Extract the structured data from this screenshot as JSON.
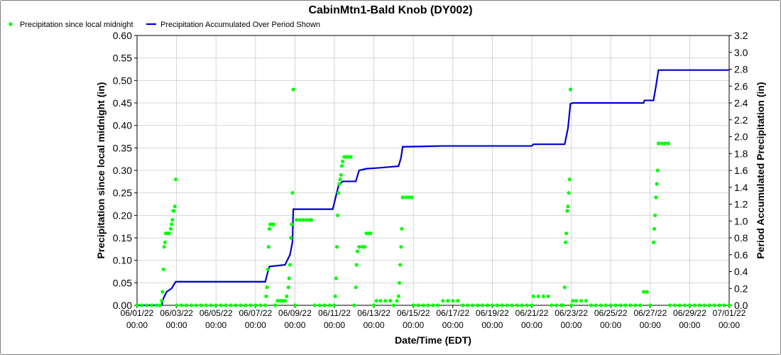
{
  "chart_data": {
    "type": "line",
    "title": "CabinMtn1-Bald Knob (DY002)",
    "xlabel": "Date/Time (EDT)",
    "ylabel_left": "Precipitation since local midnight (in)",
    "ylabel_right": "Period Accumulated Precipitation (in)",
    "xlim": [
      "06/01/22 00:00",
      "07/01/22 00:00"
    ],
    "ylim_left": [
      0,
      0.6
    ],
    "ylim_right": [
      0,
      3.2
    ],
    "grid": true,
    "legend_position": "top-left",
    "x_ticks": [
      {
        "date": "06/01/22",
        "time": "00:00"
      },
      {
        "date": "06/03/22",
        "time": "00:00"
      },
      {
        "date": "06/05/22",
        "time": "00:00"
      },
      {
        "date": "06/07/22",
        "time": "00:00"
      },
      {
        "date": "06/09/22",
        "time": "00:00"
      },
      {
        "date": "06/11/22",
        "time": "00:00"
      },
      {
        "date": "06/13/22",
        "time": "00:00"
      },
      {
        "date": "06/15/22",
        "time": "00:00"
      },
      {
        "date": "06/17/22",
        "time": "00:00"
      },
      {
        "date": "06/19/22",
        "time": "00:00"
      },
      {
        "date": "06/21/22",
        "time": "00:00"
      },
      {
        "date": "06/23/22",
        "time": "00:00"
      },
      {
        "date": "06/25/22",
        "time": "00:00"
      },
      {
        "date": "06/27/22",
        "time": "00:00"
      },
      {
        "date": "06/29/22",
        "time": "00:00"
      },
      {
        "date": "07/01/22",
        "time": "00:00"
      }
    ],
    "y_ticks_left": [
      "0.00",
      "0.05",
      "0.10",
      "0.15",
      "0.20",
      "0.25",
      "0.30",
      "0.35",
      "0.40",
      "0.45",
      "0.50",
      "0.55",
      "0.60"
    ],
    "y_ticks_right": [
      "0.0",
      "0.2",
      "0.4",
      "0.6",
      "0.8",
      "1.0",
      "1.2",
      "1.4",
      "1.6",
      "1.8",
      "2.0",
      "2.2",
      "2.4",
      "2.6",
      "2.8",
      "3.0",
      "3.2"
    ],
    "series": [
      {
        "name": "Precipitation since local midnight",
        "color": "#00ff00",
        "axis": "left",
        "style": "points",
        "points": [
          [
            "06/01/22 00:00",
            0
          ],
          [
            "06/01/22 06:00",
            0
          ],
          [
            "06/01/22 12:00",
            0
          ],
          [
            "06/01/22 18:00",
            0
          ],
          [
            "06/02/22 00:00",
            0
          ],
          [
            "06/02/22 04:00",
            0
          ],
          [
            "06/02/22 06:00",
            0.01
          ],
          [
            "06/02/22 07:00",
            0.03
          ],
          [
            "06/02/22 08:00",
            0.08
          ],
          [
            "06/02/22 09:00",
            0.13
          ],
          [
            "06/02/22 10:00",
            0.14
          ],
          [
            "06/02/22 11:00",
            0.16
          ],
          [
            "06/02/22 13:00",
            0.16
          ],
          [
            "06/02/22 15:00",
            0.16
          ],
          [
            "06/02/22 17:00",
            0.17
          ],
          [
            "06/02/22 18:00",
            0.18
          ],
          [
            "06/02/22 19:00",
            0.19
          ],
          [
            "06/02/22 20:00",
            0.21
          ],
          [
            "06/02/22 21:00",
            0.21
          ],
          [
            "06/02/22 22:00",
            0.22
          ],
          [
            "06/02/22 23:00",
            0.28
          ],
          [
            "06/03/22 00:00",
            0
          ],
          [
            "06/03/22 06:00",
            0
          ],
          [
            "06/03/22 12:00",
            0
          ],
          [
            "06/03/22 18:00",
            0
          ],
          [
            "06/04/22 00:00",
            0
          ],
          [
            "06/04/22 06:00",
            0
          ],
          [
            "06/04/22 12:00",
            0
          ],
          [
            "06/04/22 18:00",
            0
          ],
          [
            "06/05/22 00:00",
            0
          ],
          [
            "06/05/22 06:00",
            0
          ],
          [
            "06/05/22 12:00",
            0
          ],
          [
            "06/05/22 18:00",
            0
          ],
          [
            "06/06/22 00:00",
            0
          ],
          [
            "06/06/22 06:00",
            0
          ],
          [
            "06/06/22 12:00",
            0
          ],
          [
            "06/06/22 18:00",
            0
          ],
          [
            "06/07/22 00:00",
            0
          ],
          [
            "06/07/22 06:00",
            0
          ],
          [
            "06/07/22 12:00",
            0
          ],
          [
            "06/07/22 13:00",
            0.02
          ],
          [
            "06/07/22 14:00",
            0.04
          ],
          [
            "06/07/22 15:00",
            0.08
          ],
          [
            "06/07/22 16:00",
            0.13
          ],
          [
            "06/07/22 17:00",
            0.17
          ],
          [
            "06/07/22 18:00",
            0.18
          ],
          [
            "06/07/22 20:00",
            0.18
          ],
          [
            "06/07/22 22:00",
            0.18
          ],
          [
            "06/08/22 00:00",
            0
          ],
          [
            "06/08/22 03:00",
            0.01
          ],
          [
            "06/08/22 06:00",
            0.01
          ],
          [
            "06/08/22 09:00",
            0.01
          ],
          [
            "06/08/22 12:00",
            0.01
          ],
          [
            "06/08/22 14:00",
            0.02
          ],
          [
            "06/08/22 16:00",
            0.04
          ],
          [
            "06/08/22 17:00",
            0.06
          ],
          [
            "06/08/22 18:00",
            0.09
          ],
          [
            "06/08/22 19:00",
            0.15
          ],
          [
            "06/08/22 20:00",
            0.18
          ],
          [
            "06/08/22 21:00",
            0.25
          ],
          [
            "06/08/22 22:00",
            0.48
          ],
          [
            "06/09/22 00:00",
            0
          ],
          [
            "06/09/22 02:00",
            0.19
          ],
          [
            "06/09/22 06:00",
            0.19
          ],
          [
            "06/09/22 10:00",
            0.19
          ],
          [
            "06/09/22 14:00",
            0.19
          ],
          [
            "06/09/22 18:00",
            0.19
          ],
          [
            "06/09/22 20:00",
            0.19
          ],
          [
            "06/10/22 00:00",
            0
          ],
          [
            "06/10/22 06:00",
            0
          ],
          [
            "06/10/22 12:00",
            0
          ],
          [
            "06/10/22 18:00",
            0
          ],
          [
            "06/11/22 00:00",
            0
          ],
          [
            "06/11/22 01:00",
            0.02
          ],
          [
            "06/11/22 02:00",
            0.06
          ],
          [
            "06/11/22 03:00",
            0.13
          ],
          [
            "06/11/22 04:00",
            0.2
          ],
          [
            "06/11/22 05:00",
            0.25
          ],
          [
            "06/11/22 06:00",
            0.27
          ],
          [
            "06/11/22 07:00",
            0.28
          ],
          [
            "06/11/22 08:00",
            0.29
          ],
          [
            "06/11/22 09:00",
            0.31
          ],
          [
            "06/11/22 10:00",
            0.32
          ],
          [
            "06/11/22 12:00",
            0.33
          ],
          [
            "06/11/22 15:00",
            0.33
          ],
          [
            "06/11/22 18:00",
            0.33
          ],
          [
            "06/11/22 20:00",
            0.33
          ],
          [
            "06/12/22 00:00",
            0
          ],
          [
            "06/12/22 02:00",
            0.04
          ],
          [
            "06/12/22 03:00",
            0.09
          ],
          [
            "06/12/22 04:00",
            0.12
          ],
          [
            "06/12/22 06:00",
            0.13
          ],
          [
            "06/12/22 10:00",
            0.13
          ],
          [
            "06/12/22 13:00",
            0.13
          ],
          [
            "06/12/22 15:00",
            0.16
          ],
          [
            "06/12/22 18:00",
            0.16
          ],
          [
            "06/12/22 20:00",
            0.16
          ],
          [
            "06/13/22 00:00",
            0
          ],
          [
            "06/13/22 03:00",
            0.01
          ],
          [
            "06/13/22 08:00",
            0.01
          ],
          [
            "06/13/22 14:00",
            0.01
          ],
          [
            "06/13/22 20:00",
            0.01
          ],
          [
            "06/14/22 00:00",
            0
          ],
          [
            "06/14/22 04:00",
            0.01
          ],
          [
            "06/14/22 06:00",
            0.02
          ],
          [
            "06/14/22 07:00",
            0.05
          ],
          [
            "06/14/22 08:00",
            0.09
          ],
          [
            "06/14/22 09:00",
            0.13
          ],
          [
            "06/14/22 10:00",
            0.17
          ],
          [
            "06/14/22 11:00",
            0.24
          ],
          [
            "06/14/22 15:00",
            0.24
          ],
          [
            "06/14/22 19:00",
            0.24
          ],
          [
            "06/14/22 22:00",
            0.24
          ],
          [
            "06/15/22 00:00",
            0
          ],
          [
            "06/15/22 06:00",
            0
          ],
          [
            "06/15/22 12:00",
            0
          ],
          [
            "06/15/22 18:00",
            0
          ],
          [
            "06/16/22 00:00",
            0
          ],
          [
            "06/16/22 06:00",
            0
          ],
          [
            "06/16/22 12:00",
            0.01
          ],
          [
            "06/16/22 18:00",
            0.01
          ],
          [
            "06/17/22 00:00",
            0.01
          ],
          [
            "06/17/22 06:00",
            0.01
          ],
          [
            "06/17/22 12:00",
            0
          ],
          [
            "06/17/22 18:00",
            0
          ],
          [
            "06/18/22 00:00",
            0
          ],
          [
            "06/18/22 06:00",
            0
          ],
          [
            "06/18/22 12:00",
            0
          ],
          [
            "06/18/22 18:00",
            0
          ],
          [
            "06/19/22 00:00",
            0
          ],
          [
            "06/19/22 06:00",
            0
          ],
          [
            "06/19/22 12:00",
            0
          ],
          [
            "06/19/22 18:00",
            0
          ],
          [
            "06/20/22 00:00",
            0
          ],
          [
            "06/20/22 06:00",
            0
          ],
          [
            "06/20/22 12:00",
            0
          ],
          [
            "06/20/22 18:00",
            0
          ],
          [
            "06/21/22 00:00",
            0
          ],
          [
            "06/21/22 02:00",
            0.02
          ],
          [
            "06/21/22 08:00",
            0.02
          ],
          [
            "06/21/22 14:00",
            0.02
          ],
          [
            "06/21/22 20:00",
            0.02
          ],
          [
            "06/22/22 00:00",
            0
          ],
          [
            "06/22/22 06:00",
            0
          ],
          [
            "06/22/22 12:00",
            0
          ],
          [
            "06/22/22 14:00",
            0
          ],
          [
            "06/22/22 16:00",
            0.04
          ],
          [
            "06/22/22 17:00",
            0.14
          ],
          [
            "06/22/22 18:00",
            0.16
          ],
          [
            "06/22/22 19:00",
            0.21
          ],
          [
            "06/22/22 20:00",
            0.22
          ],
          [
            "06/22/22 21:00",
            0.25
          ],
          [
            "06/22/22 22:00",
            0.28
          ],
          [
            "06/22/22 23:00",
            0.48
          ],
          [
            "06/23/22 00:00",
            0
          ],
          [
            "06/23/22 02:00",
            0.01
          ],
          [
            "06/23/22 06:00",
            0.01
          ],
          [
            "06/23/22 12:00",
            0.01
          ],
          [
            "06/23/22 18:00",
            0.01
          ],
          [
            "06/24/22 00:00",
            0
          ],
          [
            "06/24/22 06:00",
            0
          ],
          [
            "06/24/22 12:00",
            0
          ],
          [
            "06/24/22 18:00",
            0
          ],
          [
            "06/25/22 00:00",
            0
          ],
          [
            "06/25/22 06:00",
            0
          ],
          [
            "06/25/22 12:00",
            0
          ],
          [
            "06/25/22 18:00",
            0
          ],
          [
            "06/26/22 00:00",
            0
          ],
          [
            "06/26/22 06:00",
            0
          ],
          [
            "06/26/22 12:00",
            0
          ],
          [
            "06/26/22 16:00",
            0.03
          ],
          [
            "06/26/22 20:00",
            0.03
          ],
          [
            "06/27/22 00:00",
            0
          ],
          [
            "06/27/22 04:00",
            0.14
          ],
          [
            "06/27/22 05:00",
            0.17
          ],
          [
            "06/27/22 06:00",
            0.2
          ],
          [
            "06/27/22 07:00",
            0.24
          ],
          [
            "06/27/22 08:00",
            0.27
          ],
          [
            "06/27/22 09:00",
            0.3
          ],
          [
            "06/27/22 10:00",
            0.36
          ],
          [
            "06/27/22 14:00",
            0.36
          ],
          [
            "06/27/22 18:00",
            0.36
          ],
          [
            "06/27/22 22:00",
            0.36
          ],
          [
            "06/28/22 00:00",
            0
          ],
          [
            "06/28/22 06:00",
            0
          ],
          [
            "06/28/22 12:00",
            0
          ],
          [
            "06/28/22 18:00",
            0
          ],
          [
            "06/29/22 00:00",
            0
          ],
          [
            "06/29/22 06:00",
            0
          ],
          [
            "06/29/22 12:00",
            0
          ],
          [
            "06/29/22 18:00",
            0
          ],
          [
            "06/30/22 00:00",
            0
          ],
          [
            "06/30/22 06:00",
            0
          ],
          [
            "06/30/22 12:00",
            0
          ],
          [
            "06/30/22 18:00",
            0
          ],
          [
            "07/01/22 00:00",
            0
          ]
        ]
      },
      {
        "name": "Precipitation Accumulated Over Period Shown",
        "color": "#0000cc",
        "axis": "right",
        "style": "step-line",
        "points": [
          [
            "06/01/22 00:00",
            0
          ],
          [
            "06/02/22 06:00",
            0
          ],
          [
            "06/02/22 08:00",
            0.08
          ],
          [
            "06/02/22 12:00",
            0.16
          ],
          [
            "06/02/22 18:00",
            0.2
          ],
          [
            "06/02/22 23:00",
            0.28
          ],
          [
            "06/07/22 12:00",
            0.28
          ],
          [
            "06/07/22 14:00",
            0.36
          ],
          [
            "06/07/22 17:00",
            0.46
          ],
          [
            "06/08/22 12:00",
            0.48
          ],
          [
            "06/08/22 18:00",
            0.6
          ],
          [
            "06/08/22 21:00",
            0.75
          ],
          [
            "06/08/22 22:00",
            1.14
          ],
          [
            "06/10/22 22:00",
            1.14
          ],
          [
            "06/11/22 02:00",
            1.3
          ],
          [
            "06/11/22 05:00",
            1.42
          ],
          [
            "06/11/22 10:00",
            1.47
          ],
          [
            "06/12/22 02:00",
            1.47
          ],
          [
            "06/12/22 06:00",
            1.6
          ],
          [
            "06/12/22 15:00",
            1.62
          ],
          [
            "06/13/22 06:00",
            1.63
          ],
          [
            "06/14/22 06:00",
            1.65
          ],
          [
            "06/14/22 09:00",
            1.75
          ],
          [
            "06/14/22 11:00",
            1.88
          ],
          [
            "06/16/22 12:00",
            1.89
          ],
          [
            "06/21/22 00:00",
            1.89
          ],
          [
            "06/21/22 02:00",
            1.91
          ],
          [
            "06/22/22 16:00",
            1.91
          ],
          [
            "06/22/22 20:00",
            2.1
          ],
          [
            "06/22/22 23:00",
            2.39
          ],
          [
            "06/23/22 02:00",
            2.4
          ],
          [
            "06/26/22 16:00",
            2.4
          ],
          [
            "06/26/22 17:00",
            2.43
          ],
          [
            "06/27/22 04:00",
            2.43
          ],
          [
            "06/27/22 07:00",
            2.6
          ],
          [
            "06/27/22 10:00",
            2.79
          ],
          [
            "07/01/22 00:00",
            2.79
          ]
        ]
      }
    ]
  }
}
